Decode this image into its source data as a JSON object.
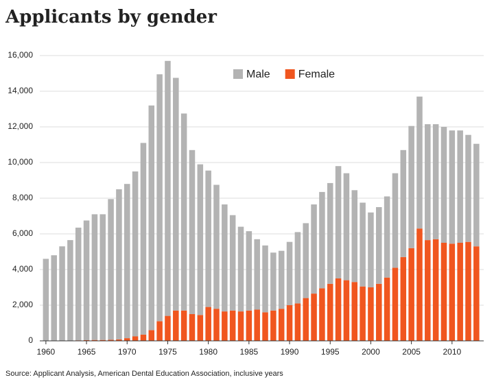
{
  "chart_data": {
    "type": "stacked-bar",
    "title": "Applicants by gender",
    "source": "Source: Applicant Analysis, American Dental Education Association, inclusive years",
    "x": [
      1960,
      1961,
      1962,
      1963,
      1964,
      1965,
      1966,
      1967,
      1968,
      1969,
      1970,
      1971,
      1972,
      1973,
      1974,
      1975,
      1976,
      1977,
      1978,
      1979,
      1980,
      1981,
      1982,
      1983,
      1984,
      1985,
      1986,
      1987,
      1988,
      1989,
      1990,
      1991,
      1992,
      1993,
      1994,
      1995,
      1996,
      1997,
      1998,
      1999,
      2000,
      2001,
      2002,
      2003,
      2004,
      2005,
      2006,
      2007,
      2008,
      2009,
      2010,
      2011,
      2012,
      2013
    ],
    "series": [
      {
        "name": "Female",
        "color": "#f0561f",
        "values": [
          0,
          0,
          0,
          0,
          30,
          40,
          50,
          50,
          60,
          80,
          150,
          250,
          350,
          600,
          1100,
          1400,
          1700,
          1700,
          1500,
          1450,
          1900,
          1800,
          1650,
          1700,
          1650,
          1700,
          1750,
          1600,
          1700,
          1800,
          2000,
          2100,
          2400,
          2650,
          2950,
          3200,
          3500,
          3400,
          3300,
          3050,
          3000,
          3200,
          3550,
          4100,
          4700,
          5200,
          6300,
          5650,
          5700,
          5500,
          5450,
          5500,
          5550,
          5300
        ]
      },
      {
        "name": "Male",
        "color": "#b3b3b3",
        "values": [
          4600,
          4800,
          5300,
          5650,
          6320,
          6710,
          7050,
          7050,
          7890,
          8420,
          8650,
          9250,
          10750,
          12600,
          13850,
          14300,
          13050,
          11050,
          9200,
          8450,
          7650,
          6950,
          6000,
          5350,
          4750,
          4450,
          3950,
          3750,
          3250,
          3250,
          3550,
          4000,
          4200,
          5000,
          5400,
          5650,
          6300,
          6000,
          5150,
          4700,
          4200,
          4300,
          4550,
          5300,
          6000,
          6850,
          7400,
          6500,
          6450,
          6500,
          6350,
          6300,
          6000,
          5750
        ]
      }
    ],
    "legend_order": [
      "Male",
      "Female"
    ],
    "xlim": [
      1959.25,
      2013.9
    ],
    "xticks": [
      1960,
      1965,
      1970,
      1975,
      1980,
      1985,
      1990,
      1995,
      2000,
      2005,
      2010
    ],
    "ylim": [
      0,
      16000
    ],
    "yticks": [
      0,
      {
        "value": 2000,
        "label": "2,000"
      },
      {
        "value": 4000,
        "label": "4,000"
      },
      {
        "value": 6000,
        "label": "6,000"
      },
      {
        "value": 8000,
        "label": "8,000"
      },
      {
        "value": 10000,
        "label": "10,000"
      },
      {
        "value": 12000,
        "label": "12,000"
      },
      {
        "value": 14000,
        "label": "14,000"
      },
      {
        "value": 16000,
        "label": "16,000"
      }
    ],
    "grid": true
  }
}
